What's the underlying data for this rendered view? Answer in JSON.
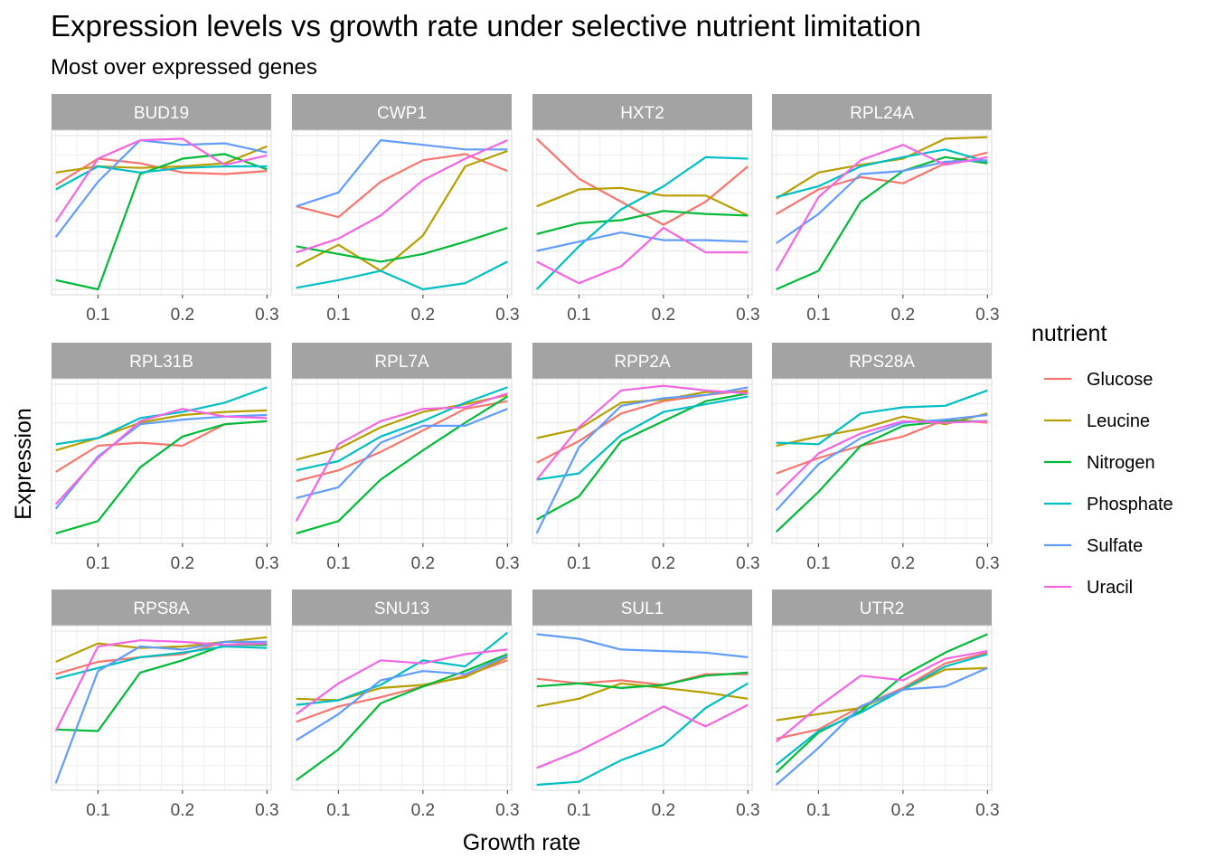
{
  "chart_data": {
    "type": "line",
    "title": "Expression levels vs growth rate under selective nutrient limitation",
    "subtitle": "Most over expressed genes",
    "xlabel": "Growth rate",
    "ylabel": "Expression",
    "x": [
      0.05,
      0.1,
      0.15,
      0.2,
      0.25,
      0.3
    ],
    "xlim": [
      0.045,
      0.305
    ],
    "x_ticks": [
      0.1,
      0.2,
      0.3
    ],
    "x_tick_labels": [
      "0.1",
      "0.2",
      "0.3"
    ],
    "facet_scales": "free_y",
    "facet_layout": {
      "rows": 3,
      "cols": 4
    },
    "grid": true,
    "legend": {
      "title": "nutrient",
      "position": "right",
      "entries": [
        {
          "name": "Glucose",
          "color": "#F8766D"
        },
        {
          "name": "Leucine",
          "color": "#B79F00"
        },
        {
          "name": "Nitrogen",
          "color": "#00BA38"
        },
        {
          "name": "Phosphate",
          "color": "#00BFC4"
        },
        {
          "name": "Sulfate",
          "color": "#619CFF"
        },
        {
          "name": "Uracil",
          "color": "#F564E3"
        }
      ]
    },
    "facets": [
      {
        "name": "BUD19",
        "ylim": [
          0,
          10
        ],
        "series": [
          {
            "name": "Glucose",
            "values": [
              6.8,
              8.5,
              8.2,
              7.6,
              7.5,
              7.7
            ]
          },
          {
            "name": "Leucine",
            "values": [
              7.6,
              8.0,
              7.9,
              8.0,
              8.2,
              9.3
            ]
          },
          {
            "name": "Nitrogen",
            "values": [
              0.6,
              0.0,
              7.5,
              8.5,
              8.8,
              7.8
            ]
          },
          {
            "name": "Phosphate",
            "values": [
              6.5,
              8.0,
              7.6,
              7.9,
              8.0,
              8.0
            ]
          },
          {
            "name": "Sulfate",
            "values": [
              3.4,
              7.0,
              9.7,
              9.4,
              9.5,
              8.9
            ]
          },
          {
            "name": "Uracil",
            "values": [
              4.4,
              8.5,
              9.7,
              9.8,
              8.1,
              8.7
            ]
          }
        ]
      },
      {
        "name": "CWP1",
        "ylim": [
          0,
          10
        ],
        "series": [
          {
            "name": "Glucose",
            "values": [
              5.4,
              4.7,
              7.0,
              8.4,
              8.8,
              7.7
            ]
          },
          {
            "name": "Leucine",
            "values": [
              1.5,
              2.9,
              1.2,
              3.5,
              8.0,
              9.0
            ]
          },
          {
            "name": "Nitrogen",
            "values": [
              2.8,
              2.3,
              1.8,
              2.3,
              3.1,
              4.0
            ]
          },
          {
            "name": "Phosphate",
            "values": [
              0.1,
              0.6,
              1.2,
              0.0,
              0.4,
              1.8
            ]
          },
          {
            "name": "Sulfate",
            "values": [
              5.4,
              6.3,
              9.7,
              9.4,
              9.1,
              9.1
            ]
          },
          {
            "name": "Uracil",
            "values": [
              2.4,
              3.3,
              4.8,
              7.1,
              8.5,
              9.7
            ]
          }
        ]
      },
      {
        "name": "HXT2",
        "ylim": [
          0,
          10
        ],
        "series": [
          {
            "name": "Glucose",
            "values": [
              9.8,
              7.2,
              5.7,
              4.2,
              5.7,
              8.0
            ]
          },
          {
            "name": "Leucine",
            "values": [
              5.4,
              6.5,
              6.6,
              6.1,
              6.1,
              4.8
            ]
          },
          {
            "name": "Nitrogen",
            "values": [
              3.6,
              4.3,
              4.5,
              5.1,
              4.9,
              4.8
            ]
          },
          {
            "name": "Phosphate",
            "values": [
              0.0,
              2.8,
              5.2,
              6.7,
              8.6,
              8.5
            ]
          },
          {
            "name": "Sulfate",
            "values": [
              2.5,
              3.1,
              3.7,
              3.2,
              3.2,
              3.1
            ]
          },
          {
            "name": "Uracil",
            "values": [
              1.8,
              0.4,
              1.5,
              4.0,
              2.4,
              2.4
            ]
          }
        ]
      },
      {
        "name": "RPL24A",
        "ylim": [
          0,
          10
        ],
        "series": [
          {
            "name": "Glucose",
            "values": [
              4.9,
              6.5,
              7.3,
              6.9,
              8.2,
              8.9
            ]
          },
          {
            "name": "Leucine",
            "values": [
              5.9,
              7.6,
              8.1,
              8.5,
              9.8,
              9.9
            ]
          },
          {
            "name": "Nitrogen",
            "values": [
              0.0,
              1.2,
              5.7,
              7.7,
              8.6,
              8.2
            ]
          },
          {
            "name": "Phosphate",
            "values": [
              6.0,
              6.7,
              8.0,
              8.6,
              9.1,
              8.3
            ]
          },
          {
            "name": "Sulfate",
            "values": [
              3.0,
              4.9,
              7.5,
              7.7,
              8.3,
              8.4
            ]
          },
          {
            "name": "Uracil",
            "values": [
              1.2,
              6.0,
              8.4,
              9.4,
              8.1,
              8.6
            ]
          }
        ]
      },
      {
        "name": "RPL31B",
        "ylim": [
          0,
          10
        ],
        "series": [
          {
            "name": "Glucose",
            "values": [
              4.3,
              6.0,
              6.2,
              6.0,
              7.4,
              7.6
            ]
          },
          {
            "name": "Leucine",
            "values": [
              5.7,
              6.5,
              7.5,
              8.0,
              8.2,
              8.3
            ]
          },
          {
            "name": "Nitrogen",
            "values": [
              0.3,
              1.1,
              4.6,
              6.6,
              7.4,
              7.6
            ]
          },
          {
            "name": "Phosphate",
            "values": [
              6.1,
              6.5,
              7.8,
              8.2,
              8.8,
              9.8
            ]
          },
          {
            "name": "Sulfate",
            "values": [
              1.9,
              5.3,
              7.4,
              7.7,
              7.9,
              8.0
            ]
          },
          {
            "name": "Uracil",
            "values": [
              2.2,
              5.2,
              7.6,
              8.4,
              7.9,
              7.8
            ]
          }
        ]
      },
      {
        "name": "RPL7A",
        "ylim": [
          0,
          10
        ],
        "series": [
          {
            "name": "Glucose",
            "values": [
              3.7,
              4.4,
              5.6,
              7.0,
              8.4,
              8.9
            ]
          },
          {
            "name": "Leucine",
            "values": [
              5.1,
              5.8,
              7.2,
              8.2,
              8.7,
              9.3
            ]
          },
          {
            "name": "Nitrogen",
            "values": [
              0.3,
              1.1,
              3.8,
              5.7,
              7.5,
              9.2
            ]
          },
          {
            "name": "Phosphate",
            "values": [
              4.4,
              5.0,
              6.6,
              7.6,
              8.8,
              9.8
            ]
          },
          {
            "name": "Sulfate",
            "values": [
              2.6,
              3.3,
              6.2,
              7.3,
              7.3,
              8.4
            ]
          },
          {
            "name": "Uracil",
            "values": [
              1.1,
              6.1,
              7.6,
              8.4,
              8.5,
              9.4
            ]
          }
        ]
      },
      {
        "name": "RPP2A",
        "ylim": [
          0,
          10
        ],
        "series": [
          {
            "name": "Glucose",
            "values": [
              4.9,
              6.3,
              8.1,
              8.9,
              9.3,
              9.6
            ]
          },
          {
            "name": "Leucine",
            "values": [
              6.5,
              7.1,
              8.8,
              9.0,
              9.5,
              9.5
            ]
          },
          {
            "name": "Nitrogen",
            "values": [
              1.2,
              2.7,
              6.3,
              7.6,
              8.9,
              9.4
            ]
          },
          {
            "name": "Phosphate",
            "values": [
              3.8,
              4.2,
              6.7,
              8.2,
              8.7,
              9.2
            ]
          },
          {
            "name": "Sulfate",
            "values": [
              0.3,
              5.9,
              8.6,
              9.1,
              9.3,
              9.8
            ]
          },
          {
            "name": "Uracil",
            "values": [
              3.8,
              7.2,
              9.6,
              9.9,
              9.6,
              9.4
            ]
          }
        ]
      },
      {
        "name": "RPS28A",
        "ylim": [
          0,
          10
        ],
        "series": [
          {
            "name": "Glucose",
            "values": [
              4.2,
              5.2,
              6.0,
              6.6,
              7.7,
              7.5
            ]
          },
          {
            "name": "Leucine",
            "values": [
              6.0,
              6.6,
              7.1,
              7.9,
              7.4,
              8.1
            ]
          },
          {
            "name": "Nitrogen",
            "values": [
              0.4,
              3.0,
              6.0,
              7.3,
              7.6,
              7.6
            ]
          },
          {
            "name": "Phosphate",
            "values": [
              6.2,
              6.1,
              8.1,
              8.5,
              8.6,
              9.6
            ]
          },
          {
            "name": "Sulfate",
            "values": [
              1.8,
              4.8,
              6.5,
              7.5,
              7.7,
              8.0
            ]
          },
          {
            "name": "Uracil",
            "values": [
              2.8,
              5.5,
              6.8,
              7.6,
              7.5,
              7.6
            ]
          }
        ]
      },
      {
        "name": "RPS8A",
        "ylim": [
          0,
          10
        ],
        "series": [
          {
            "name": "Glucose",
            "values": [
              7.2,
              8.0,
              8.3,
              8.5,
              9.3,
              9.2
            ]
          },
          {
            "name": "Leucine",
            "values": [
              8.0,
              9.2,
              8.9,
              9.0,
              9.3,
              9.6
            ]
          },
          {
            "name": "Nitrogen",
            "values": [
              3.6,
              3.5,
              7.3,
              8.1,
              9.1,
              9.1
            ]
          },
          {
            "name": "Phosphate",
            "values": [
              6.9,
              7.6,
              8.3,
              8.6,
              9.0,
              8.9
            ]
          },
          {
            "name": "Sulfate",
            "values": [
              0.1,
              7.4,
              9.0,
              8.8,
              9.3,
              9.3
            ]
          },
          {
            "name": "Uracil",
            "values": [
              3.5,
              9.0,
              9.4,
              9.3,
              9.1,
              9.2
            ]
          }
        ]
      },
      {
        "name": "SNU13",
        "ylim": [
          0,
          10
        ],
        "series": [
          {
            "name": "Glucose",
            "values": [
              4.1,
              5.1,
              5.7,
              6.4,
              7.1,
              8.1
            ]
          },
          {
            "name": "Leucine",
            "values": [
              5.6,
              5.5,
              6.3,
              6.5,
              7.0,
              8.3
            ]
          },
          {
            "name": "Nitrogen",
            "values": [
              0.3,
              2.3,
              5.3,
              6.4,
              7.4,
              8.5
            ]
          },
          {
            "name": "Phosphate",
            "values": [
              5.2,
              5.5,
              6.5,
              8.1,
              7.7,
              9.9
            ]
          },
          {
            "name": "Sulfate",
            "values": [
              2.9,
              4.6,
              6.8,
              7.4,
              7.2,
              8.4
            ]
          },
          {
            "name": "Uracil",
            "values": [
              4.6,
              6.6,
              8.1,
              7.9,
              8.5,
              8.8
            ]
          }
        ]
      },
      {
        "name": "SUL1",
        "ylim": [
          0,
          10
        ],
        "series": [
          {
            "name": "Glucose",
            "values": [
              6.9,
              6.6,
              6.8,
              6.5,
              7.2,
              7.2
            ]
          },
          {
            "name": "Leucine",
            "values": [
              5.1,
              5.6,
              6.6,
              6.3,
              6.0,
              5.6
            ]
          },
          {
            "name": "Nitrogen",
            "values": [
              6.4,
              6.6,
              6.3,
              6.5,
              7.1,
              7.3
            ]
          },
          {
            "name": "Phosphate",
            "values": [
              0.0,
              0.2,
              1.6,
              2.6,
              5.0,
              6.6
            ]
          },
          {
            "name": "Sulfate",
            "values": [
              9.8,
              9.5,
              8.8,
              8.7,
              8.6,
              8.3
            ]
          },
          {
            "name": "Uracil",
            "values": [
              1.1,
              2.2,
              3.6,
              5.1,
              3.8,
              5.2
            ]
          }
        ]
      },
      {
        "name": "UTR2",
        "ylim": [
          0,
          10
        ],
        "series": [
          {
            "name": "Glucose",
            "values": [
              3.0,
              3.6,
              5.1,
              6.3,
              7.9,
              8.6
            ]
          },
          {
            "name": "Leucine",
            "values": [
              4.2,
              4.6,
              5.0,
              6.2,
              7.5,
              7.6
            ]
          },
          {
            "name": "Nitrogen",
            "values": [
              0.8,
              3.4,
              4.8,
              7.1,
              8.6,
              9.8
            ]
          },
          {
            "name": "Phosphate",
            "values": [
              1.3,
              3.5,
              4.7,
              6.2,
              7.7,
              8.5
            ]
          },
          {
            "name": "Sulfate",
            "values": [
              0.0,
              2.4,
              5.1,
              6.2,
              6.4,
              7.6
            ]
          },
          {
            "name": "Uracil",
            "values": [
              2.8,
              5.1,
              7.1,
              6.8,
              8.2,
              8.7
            ]
          }
        ]
      }
    ]
  }
}
